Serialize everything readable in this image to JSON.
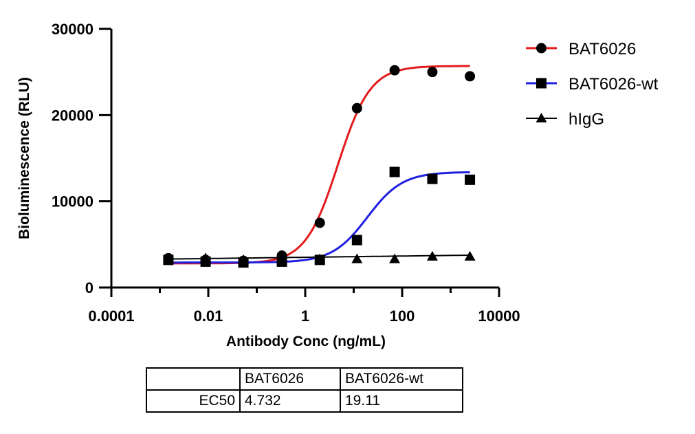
{
  "chart_data": {
    "type": "scatter",
    "title": "",
    "xlabel": "Antibody Conc (ng/mL)",
    "ylabel": "Bioluminescence (RLU)",
    "xscale": "log",
    "xlim": [
      0.0001,
      10000
    ],
    "ylim": [
      0,
      30000
    ],
    "xticks": [
      0.0001,
      0.01,
      1,
      100,
      10000
    ],
    "xtick_labels": [
      "0.0001",
      "0.01",
      "1",
      "100",
      "10000"
    ],
    "yticks": [
      0,
      10000,
      20000,
      30000
    ],
    "ytick_labels": [
      "0",
      "10000",
      "20000",
      "30000"
    ],
    "grid": false,
    "legend_position": "top-right",
    "x": [
      0.0015,
      0.0088,
      0.053,
      0.33,
      2.0,
      11.7,
      70.0,
      420.0,
      2500.0
    ],
    "series": [
      {
        "name": "BAT6026",
        "color": "#e31a1c",
        "marker": "circle",
        "values": [
          3400,
          3200,
          3100,
          3700,
          7500,
          20800,
          25200,
          25000,
          24500
        ],
        "fit": {
          "bottom": 2800,
          "top": 25700,
          "ec50": 4.732,
          "hill": 1.3
        }
      },
      {
        "name": "BAT6026-wt",
        "color": "#1f1fe0",
        "marker": "square",
        "values": [
          3200,
          3000,
          2900,
          3000,
          3200,
          5500,
          13400,
          12600,
          12500
        ],
        "fit": {
          "bottom": 2900,
          "top": 13400,
          "ec50": 19.11,
          "hill": 1.2
        }
      },
      {
        "name": "hIgG",
        "color": "#000000",
        "marker": "triangle",
        "values": [
          3300,
          3400,
          3200,
          3200,
          3300,
          3300,
          3300,
          3600,
          3600
        ],
        "fit": {
          "type": "linear",
          "start": 3300,
          "end": 3750
        }
      }
    ]
  },
  "table": {
    "headers": [
      "",
      "BAT6026",
      "BAT6026-wt"
    ],
    "rows": [
      [
        "EC50",
        "4.732",
        "19.11"
      ]
    ]
  }
}
